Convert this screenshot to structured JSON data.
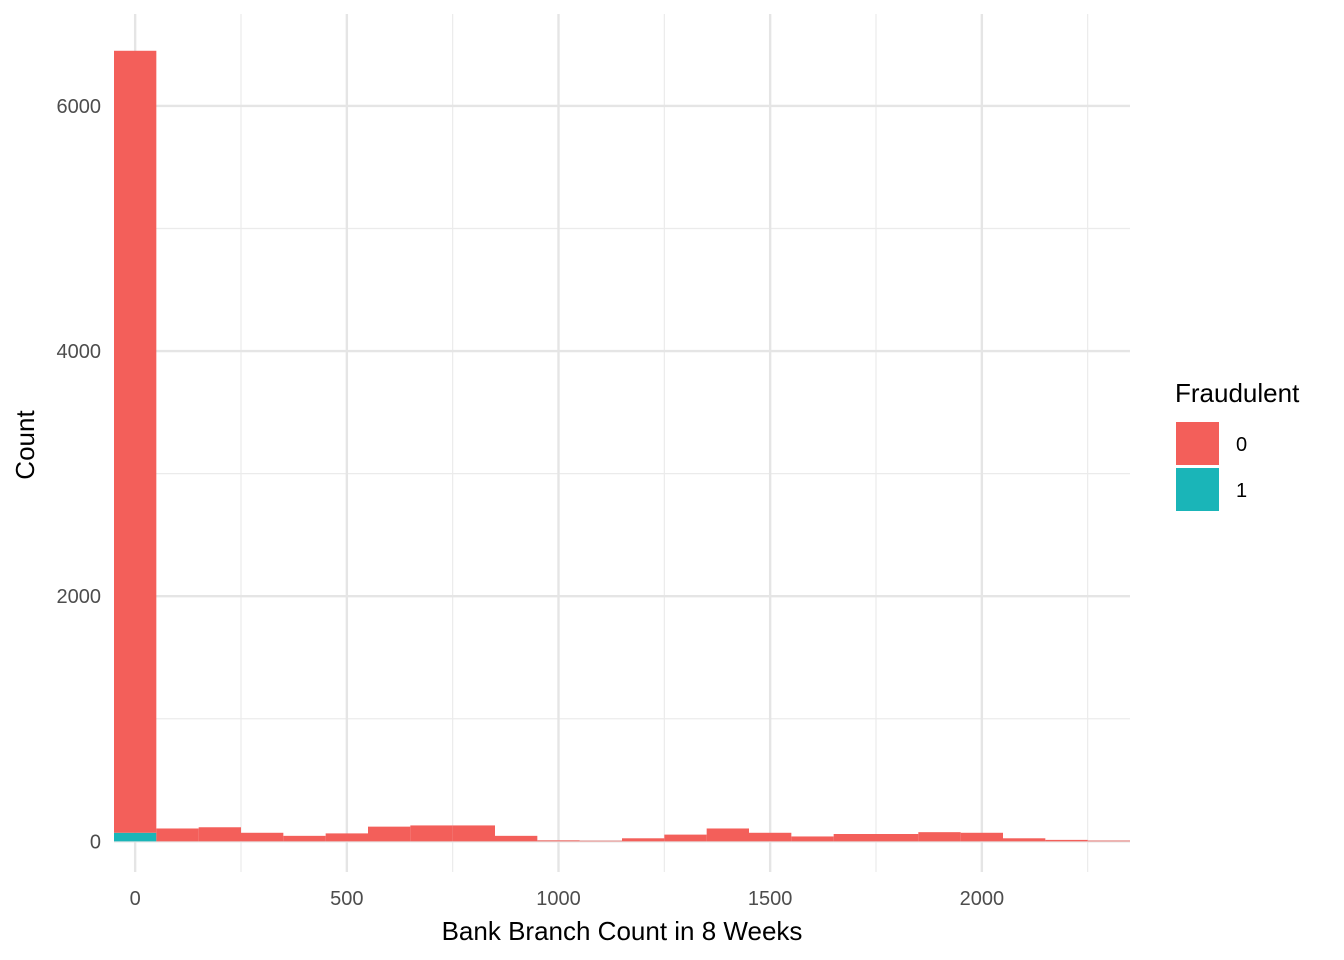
{
  "chart_data": {
    "type": "bar",
    "subtype": "stacked-histogram",
    "title": "",
    "xlabel": "Bank Branch Count in 8 Weeks",
    "ylabel": "Count",
    "xlim": [
      -50,
      2350
    ],
    "ylim": [
      -250,
      6750
    ],
    "x_ticks": [
      0,
      500,
      1000,
      1500,
      2000
    ],
    "x_minor_ticks": [
      250,
      750,
      1250,
      1750,
      2250
    ],
    "y_ticks": [
      0,
      2000,
      4000,
      6000
    ],
    "y_minor_ticks": [
      1000,
      3000,
      5000
    ],
    "x_tick_labels": [
      "0",
      "500",
      "1000",
      "1500",
      "2000"
    ],
    "y_tick_labels": [
      "0",
      "2000",
      "4000",
      "6000"
    ],
    "grid": true,
    "legend": {
      "title": "Fraudulent",
      "placement": "right"
    },
    "bin_width": 100,
    "bin_centers": [
      0,
      100,
      200,
      300,
      400,
      500,
      600,
      700,
      800,
      900,
      1000,
      1100,
      1200,
      1300,
      1400,
      1500,
      1600,
      1700,
      1800,
      1900,
      2000,
      2100,
      2200,
      2300
    ],
    "series": [
      {
        "name": "1",
        "color": "#1ab5b8",
        "values": [
          70,
          0,
          0,
          0,
          0,
          0,
          0,
          0,
          0,
          0,
          0,
          0,
          0,
          0,
          0,
          0,
          0,
          0,
          0,
          0,
          0,
          0,
          0,
          0
        ]
      },
      {
        "name": "0",
        "color": "#f35f5a",
        "values": [
          6380,
          105,
          115,
          70,
          45,
          65,
          120,
          130,
          130,
          45,
          8,
          5,
          25,
          55,
          105,
          70,
          40,
          60,
          60,
          75,
          70,
          25,
          12,
          6
        ]
      }
    ]
  }
}
